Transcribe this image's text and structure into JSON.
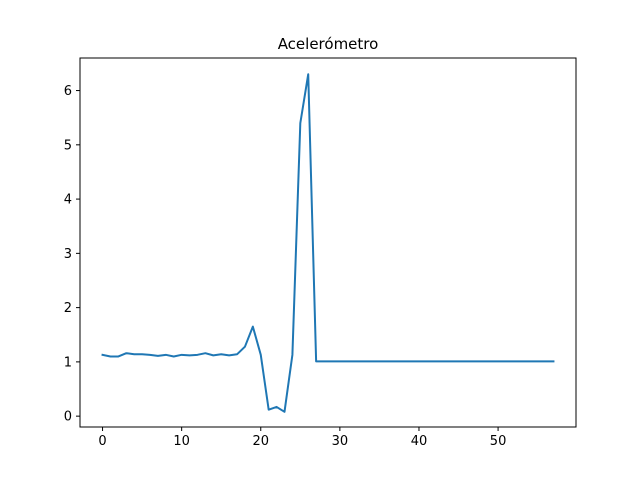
{
  "chart_data": {
    "type": "line",
    "title": "Acelerómetro",
    "xlabel": "",
    "ylabel": "",
    "xlim": [
      -2.85,
      59.85
    ],
    "ylim": [
      -0.2,
      6.6
    ],
    "xticks": [
      0,
      10,
      20,
      30,
      40,
      50
    ],
    "yticks": [
      0,
      1,
      2,
      3,
      4,
      5,
      6
    ],
    "grid": false,
    "color": "#1f77b4",
    "series": [
      {
        "x": [
          0,
          1,
          2,
          3,
          4,
          5,
          6,
          7,
          8,
          9,
          10,
          11,
          12,
          13,
          14,
          15,
          16,
          17,
          18,
          19,
          20,
          21,
          22,
          23,
          24,
          25,
          26,
          27,
          28,
          29,
          30,
          31,
          32,
          33,
          34,
          35,
          36,
          37,
          38,
          39,
          40,
          41,
          42,
          43,
          44,
          45,
          46,
          47,
          48,
          49,
          50,
          51,
          52,
          53,
          54,
          55,
          56,
          57
        ],
        "values": [
          1.13,
          1.1,
          1.1,
          1.16,
          1.14,
          1.14,
          1.13,
          1.11,
          1.13,
          1.1,
          1.13,
          1.12,
          1.13,
          1.16,
          1.12,
          1.14,
          1.12,
          1.14,
          1.28,
          1.65,
          1.13,
          0.12,
          0.17,
          0.08,
          1.13,
          5.4,
          6.3,
          1.01,
          1.01,
          1.01,
          1.01,
          1.01,
          1.01,
          1.01,
          1.01,
          1.01,
          1.01,
          1.01,
          1.01,
          1.01,
          1.01,
          1.01,
          1.01,
          1.01,
          1.01,
          1.01,
          1.01,
          1.01,
          1.01,
          1.01,
          1.01,
          1.01,
          1.01,
          1.01,
          1.01,
          1.01,
          1.01,
          1.01
        ]
      }
    ]
  }
}
